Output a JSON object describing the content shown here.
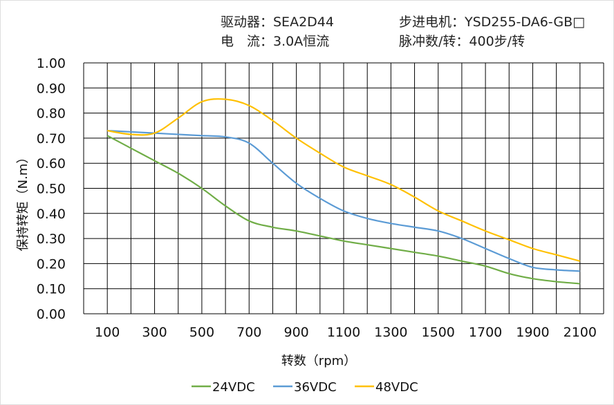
{
  "header": {
    "driver": "驱动器：SEA2D44",
    "motor": "步进电机：YSD255-DA6-GB□",
    "current": "电　流：3.0A恒流",
    "pulse": "脉冲数/转：400步/转"
  },
  "chart_data": {
    "type": "line",
    "xlabel": "转数（rpm）",
    "ylabel": "保持转矩（N.m）",
    "xlim": [
      0,
      2200
    ],
    "ylim": [
      0,
      1.0
    ],
    "grid": true,
    "legend_placement": "bottom",
    "x_ticks": [
      100,
      300,
      500,
      700,
      900,
      1100,
      1300,
      1500,
      1700,
      1900,
      2100
    ],
    "y_ticks": [
      "0.00",
      "0.10",
      "0.20",
      "0.30",
      "0.40",
      "0.50",
      "0.60",
      "0.70",
      "0.80",
      "0.90",
      "1.00"
    ],
    "x": [
      100,
      200,
      300,
      400,
      500,
      600,
      700,
      800,
      900,
      1000,
      1100,
      1200,
      1300,
      1400,
      1500,
      1600,
      1700,
      1800,
      1900,
      2000,
      2100
    ],
    "series": [
      {
        "name": "24VDC",
        "color": "#70AD47",
        "values": [
          0.71,
          0.66,
          0.61,
          0.56,
          0.5,
          0.43,
          0.37,
          0.345,
          0.33,
          0.31,
          0.29,
          0.275,
          0.26,
          0.245,
          0.23,
          0.21,
          0.19,
          0.16,
          0.14,
          0.128,
          0.12
        ]
      },
      {
        "name": "36VDC",
        "color": "#5B9BD5",
        "values": [
          0.73,
          0.725,
          0.72,
          0.715,
          0.71,
          0.705,
          0.68,
          0.6,
          0.52,
          0.46,
          0.41,
          0.38,
          0.36,
          0.345,
          0.33,
          0.3,
          0.26,
          0.22,
          0.185,
          0.175,
          0.17
        ]
      },
      {
        "name": "48VDC",
        "color": "#FFC000",
        "values": [
          0.73,
          0.715,
          0.72,
          0.78,
          0.845,
          0.855,
          0.83,
          0.77,
          0.7,
          0.64,
          0.585,
          0.55,
          0.515,
          0.465,
          0.41,
          0.37,
          0.33,
          0.295,
          0.26,
          0.235,
          0.21
        ]
      }
    ]
  }
}
